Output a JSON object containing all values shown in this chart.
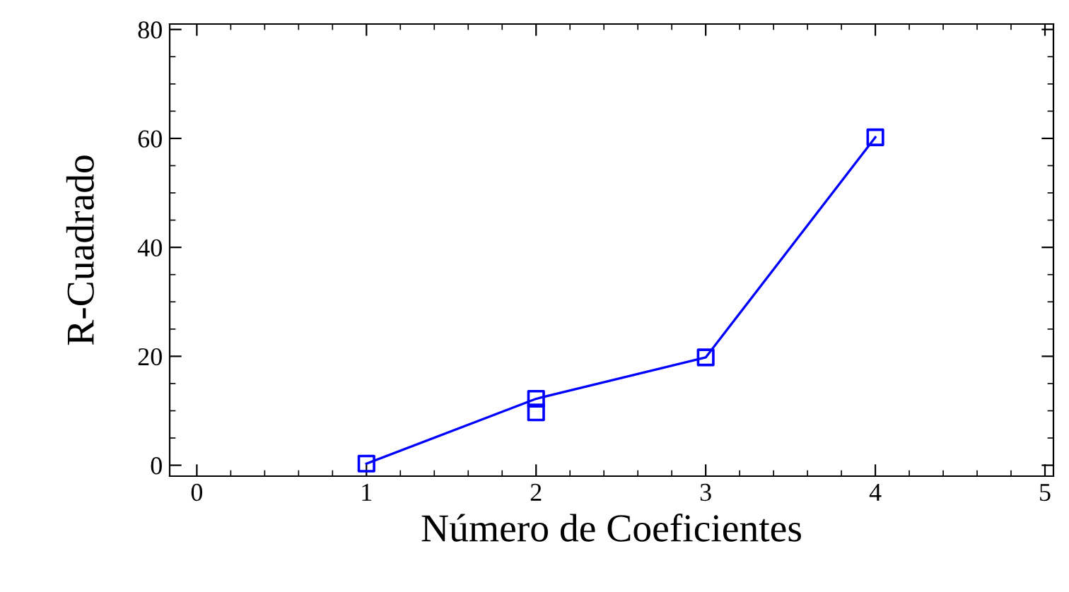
{
  "chart_data": {
    "type": "scatter",
    "xlabel": "Número de Coeficientes",
    "ylabel": "R-Cuadrado",
    "xlim": [
      -0.16,
      5.05
    ],
    "ylim": [
      -2,
      81
    ],
    "xticks": [
      0,
      1,
      2,
      3,
      4,
      5
    ],
    "yticks": [
      0,
      20,
      40,
      60,
      80
    ],
    "grid": false,
    "legend": false,
    "series": [
      {
        "type": "line",
        "color": "#0000ff",
        "x": [
          1,
          2,
          3,
          4
        ],
        "values": [
          0.3,
          12.2,
          19.8,
          60.2
        ],
        "marker": "none",
        "line_style": "solid"
      },
      {
        "color": "#0000ff",
        "x": [
          1,
          2,
          2,
          3,
          4
        ],
        "values": [
          0.3,
          12.2,
          9.7,
          19.8,
          60.2
        ],
        "marker": "square"
      }
    ]
  }
}
